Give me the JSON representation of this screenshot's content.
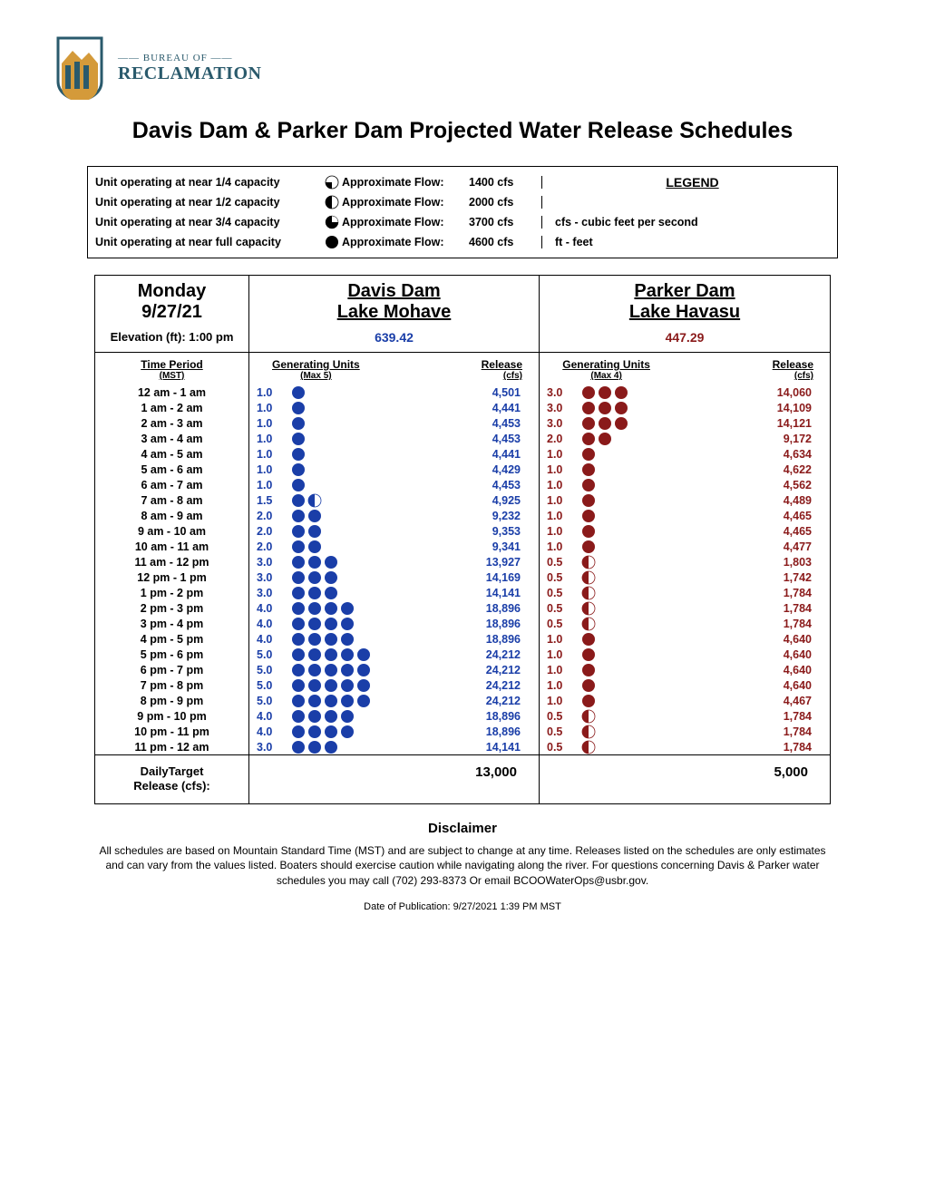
{
  "logo": {
    "top_line": "—— BUREAU OF ——",
    "name": "RECLAMATION"
  },
  "page_title": "Davis Dam & Parker Dam Projected Water Release Schedules",
  "legend": {
    "rows": [
      {
        "label": "Unit operating at near 1/4 capacity",
        "flow_label": "Approximate Flow:",
        "flow": "1400 cfs",
        "cap": "quarter"
      },
      {
        "label": "Unit operating at near 1/2 capacity",
        "flow_label": "Approximate Flow:",
        "flow": "2000 cfs",
        "cap": "half"
      },
      {
        "label": "Unit operating at near 3/4 capacity",
        "flow_label": "Approximate Flow:",
        "flow": "3700 cfs",
        "cap": "threeq"
      },
      {
        "label": "Unit operating at near full capacity",
        "flow_label": "Approximate Flow:",
        "flow": "4600 cfs",
        "cap": "full"
      }
    ],
    "title": "LEGEND",
    "defs": [
      "cfs - cubic feet per second",
      "ft - feet"
    ]
  },
  "header": {
    "day": "Monday",
    "date": "9/27/21",
    "elev_label": "Elevation (ft): 1:00 pm",
    "davis_name": "Davis Dam",
    "davis_lake": "Lake Mohave",
    "davis_elev": "639.42",
    "parker_name": "Parker Dam",
    "parker_lake": "Lake Havasu",
    "parker_elev": "447.29"
  },
  "subhead": {
    "time": "Time Period",
    "time_sub": "(MST)",
    "gen": "Generating Units",
    "davis_gen_sub": "(Max 5)",
    "parker_gen_sub": "(Max 4)",
    "rel": "Release",
    "rel_sub": "(cfs)"
  },
  "colors": {
    "davis": "#1a3ea8",
    "parker": "#8a1a1a",
    "black": "#000000"
  },
  "rows": [
    {
      "t": "12 am - 1 am",
      "d_u": "1.0",
      "d_dots": [
        "full"
      ],
      "d_r": "4,501",
      "p_u": "3.0",
      "p_dots": [
        "full",
        "full",
        "full"
      ],
      "p_r": "14,060"
    },
    {
      "t": "1 am - 2 am",
      "d_u": "1.0",
      "d_dots": [
        "full"
      ],
      "d_r": "4,441",
      "p_u": "3.0",
      "p_dots": [
        "full",
        "full",
        "full"
      ],
      "p_r": "14,109"
    },
    {
      "t": "2 am - 3 am",
      "d_u": "1.0",
      "d_dots": [
        "full"
      ],
      "d_r": "4,453",
      "p_u": "3.0",
      "p_dots": [
        "full",
        "full",
        "full"
      ],
      "p_r": "14,121"
    },
    {
      "t": "3 am - 4 am",
      "d_u": "1.0",
      "d_dots": [
        "full"
      ],
      "d_r": "4,453",
      "p_u": "2.0",
      "p_dots": [
        "full",
        "full"
      ],
      "p_r": "9,172"
    },
    {
      "t": "4 am - 5 am",
      "d_u": "1.0",
      "d_dots": [
        "full"
      ],
      "d_r": "4,441",
      "p_u": "1.0",
      "p_dots": [
        "full"
      ],
      "p_r": "4,634"
    },
    {
      "t": "5 am - 6 am",
      "d_u": "1.0",
      "d_dots": [
        "full"
      ],
      "d_r": "4,429",
      "p_u": "1.0",
      "p_dots": [
        "full"
      ],
      "p_r": "4,622"
    },
    {
      "t": "6 am - 7 am",
      "d_u": "1.0",
      "d_dots": [
        "full"
      ],
      "d_r": "4,453",
      "p_u": "1.0",
      "p_dots": [
        "full"
      ],
      "p_r": "4,562"
    },
    {
      "t": "7 am - 8 am",
      "d_u": "1.5",
      "d_dots": [
        "full",
        "half"
      ],
      "d_r": "4,925",
      "p_u": "1.0",
      "p_dots": [
        "full"
      ],
      "p_r": "4,489"
    },
    {
      "t": "8 am - 9 am",
      "d_u": "2.0",
      "d_dots": [
        "full",
        "full"
      ],
      "d_r": "9,232",
      "p_u": "1.0",
      "p_dots": [
        "full"
      ],
      "p_r": "4,465"
    },
    {
      "t": "9 am - 10 am",
      "d_u": "2.0",
      "d_dots": [
        "full",
        "full"
      ],
      "d_r": "9,353",
      "p_u": "1.0",
      "p_dots": [
        "full"
      ],
      "p_r": "4,465"
    },
    {
      "t": "10 am - 11 am",
      "d_u": "2.0",
      "d_dots": [
        "full",
        "full"
      ],
      "d_r": "9,341",
      "p_u": "1.0",
      "p_dots": [
        "full"
      ],
      "p_r": "4,477"
    },
    {
      "t": "11 am - 12 pm",
      "d_u": "3.0",
      "d_dots": [
        "full",
        "full",
        "full"
      ],
      "d_r": "13,927",
      "p_u": "0.5",
      "p_dots": [
        "half"
      ],
      "p_r": "1,803"
    },
    {
      "t": "12 pm - 1 pm",
      "d_u": "3.0",
      "d_dots": [
        "full",
        "full",
        "full"
      ],
      "d_r": "14,169",
      "p_u": "0.5",
      "p_dots": [
        "half"
      ],
      "p_r": "1,742"
    },
    {
      "t": "1 pm - 2 pm",
      "d_u": "3.0",
      "d_dots": [
        "full",
        "full",
        "full"
      ],
      "d_r": "14,141",
      "p_u": "0.5",
      "p_dots": [
        "half"
      ],
      "p_r": "1,784"
    },
    {
      "t": "2 pm - 3 pm",
      "d_u": "4.0",
      "d_dots": [
        "full",
        "full",
        "full",
        "full"
      ],
      "d_r": "18,896",
      "p_u": "0.5",
      "p_dots": [
        "half"
      ],
      "p_r": "1,784"
    },
    {
      "t": "3 pm - 4 pm",
      "d_u": "4.0",
      "d_dots": [
        "full",
        "full",
        "full",
        "full"
      ],
      "d_r": "18,896",
      "p_u": "0.5",
      "p_dots": [
        "half"
      ],
      "p_r": "1,784"
    },
    {
      "t": "4 pm - 5 pm",
      "d_u": "4.0",
      "d_dots": [
        "full",
        "full",
        "full",
        "full"
      ],
      "d_r": "18,896",
      "p_u": "1.0",
      "p_dots": [
        "full"
      ],
      "p_r": "4,640"
    },
    {
      "t": "5 pm - 6 pm",
      "d_u": "5.0",
      "d_dots": [
        "full",
        "full",
        "full",
        "full",
        "full"
      ],
      "d_r": "24,212",
      "p_u": "1.0",
      "p_dots": [
        "full"
      ],
      "p_r": "4,640"
    },
    {
      "t": "6 pm - 7 pm",
      "d_u": "5.0",
      "d_dots": [
        "full",
        "full",
        "full",
        "full",
        "full"
      ],
      "d_r": "24,212",
      "p_u": "1.0",
      "p_dots": [
        "full"
      ],
      "p_r": "4,640"
    },
    {
      "t": "7 pm - 8 pm",
      "d_u": "5.0",
      "d_dots": [
        "full",
        "full",
        "full",
        "full",
        "full"
      ],
      "d_r": "24,212",
      "p_u": "1.0",
      "p_dots": [
        "full"
      ],
      "p_r": "4,640"
    },
    {
      "t": "8 pm - 9 pm",
      "d_u": "5.0",
      "d_dots": [
        "full",
        "full",
        "full",
        "full",
        "full"
      ],
      "d_r": "24,212",
      "p_u": "1.0",
      "p_dots": [
        "full"
      ],
      "p_r": "4,467"
    },
    {
      "t": "9 pm - 10 pm",
      "d_u": "4.0",
      "d_dots": [
        "full",
        "full",
        "full",
        "full"
      ],
      "d_r": "18,896",
      "p_u": "0.5",
      "p_dots": [
        "half"
      ],
      "p_r": "1,784"
    },
    {
      "t": "10 pm - 11 pm",
      "d_u": "4.0",
      "d_dots": [
        "full",
        "full",
        "full",
        "full"
      ],
      "d_r": "18,896",
      "p_u": "0.5",
      "p_dots": [
        "half"
      ],
      "p_r": "1,784"
    },
    {
      "t": "11 pm - 12 am",
      "d_u": "3.0",
      "d_dots": [
        "full",
        "full",
        "full"
      ],
      "d_r": "14,141",
      "p_u": "0.5",
      "p_dots": [
        "half"
      ],
      "p_r": "1,784"
    }
  ],
  "daily_target": {
    "label": "DailyTarget Release (cfs):",
    "davis": "13,000",
    "parker": "5,000"
  },
  "disclaimer": {
    "title": "Disclaimer",
    "text": "All schedules are based on Mountain Standard Time (MST) and are subject to change at any time. Releases listed on the schedules are only estimates and can vary from the values listed. Boaters should exercise caution while navigating along the river. For questions concerning Davis & Parker water schedules you may call (702) 293-8373 Or email BCOOWaterOps@usbr.gov."
  },
  "pubdate": "Date of Publication: 9/27/2021 1:39 PM MST"
}
